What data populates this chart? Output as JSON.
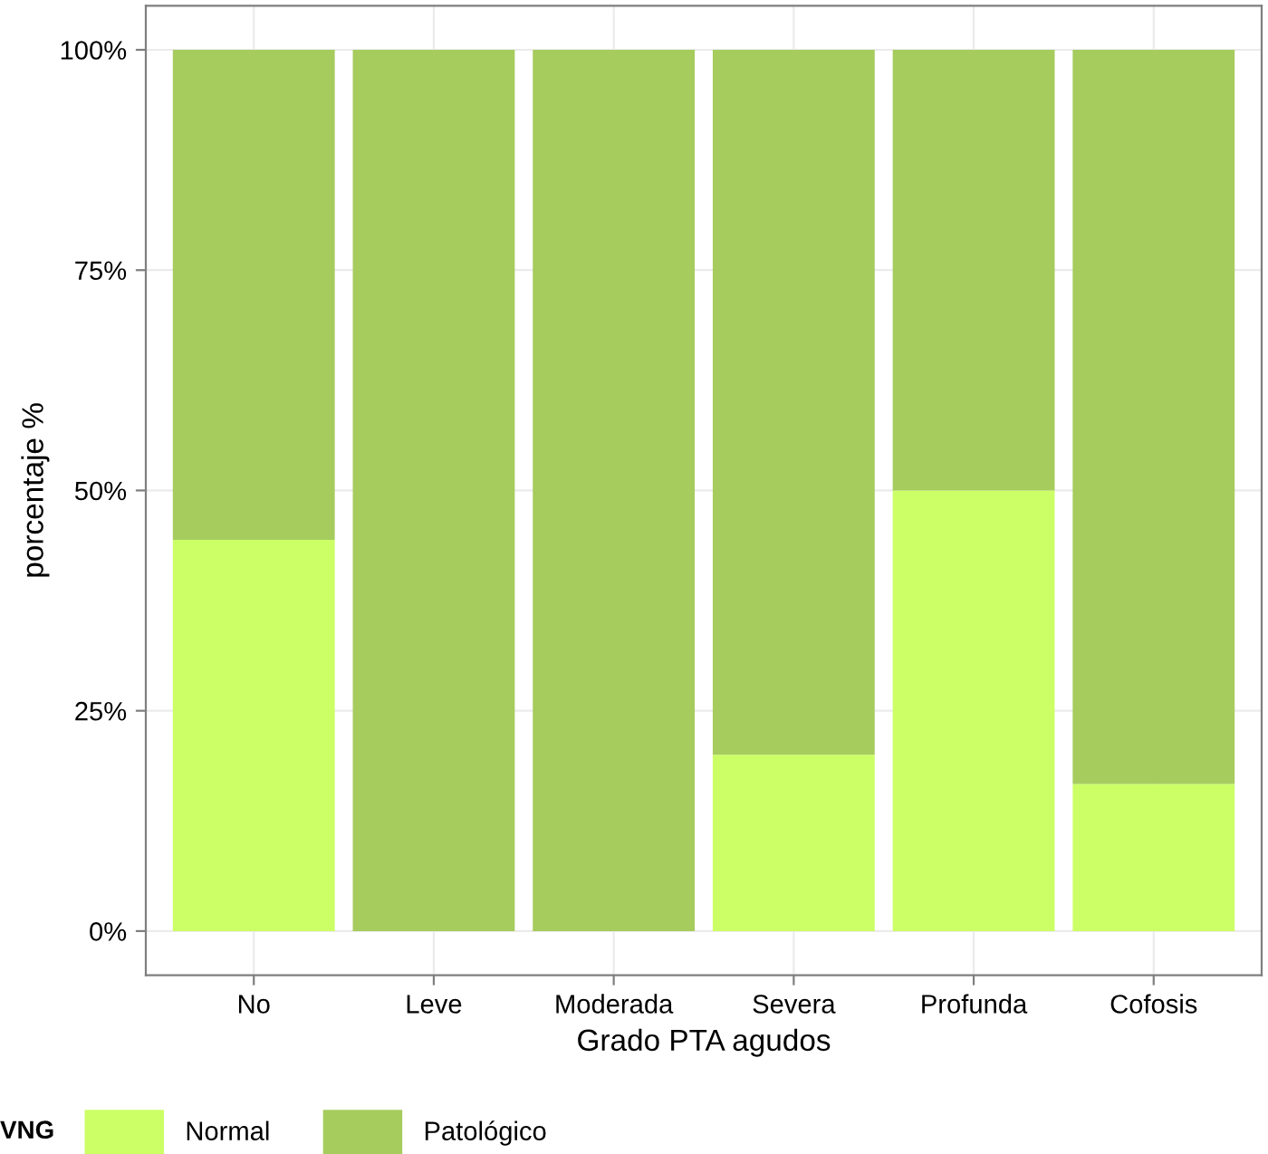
{
  "chart_data": {
    "type": "bar",
    "stacked": true,
    "xlabel": "Grado PTA agudos",
    "ylabel": "porcentaje %",
    "legend_title": "VNG",
    "categories": [
      "No",
      "Leve",
      "Moderada",
      "Severa",
      "Profunda",
      "Cofosis"
    ],
    "series": [
      {
        "name": "Normal",
        "color": "#ccff66",
        "values": [
          44.4,
          0,
          0,
          20,
          50,
          16.7
        ]
      },
      {
        "name": "Patológico",
        "color": "#a6cc5e",
        "values": [
          55.6,
          100,
          100,
          80,
          50,
          83.3
        ]
      }
    ],
    "ylim": [
      -5,
      105
    ],
    "yticks": [
      {
        "value": 0,
        "label": "0%"
      },
      {
        "value": 25,
        "label": "25%"
      },
      {
        "value": 50,
        "label": "50%"
      },
      {
        "value": 75,
        "label": "75%"
      },
      {
        "value": 100,
        "label": "100%"
      }
    ],
    "grid": true,
    "legend": "bottom"
  }
}
